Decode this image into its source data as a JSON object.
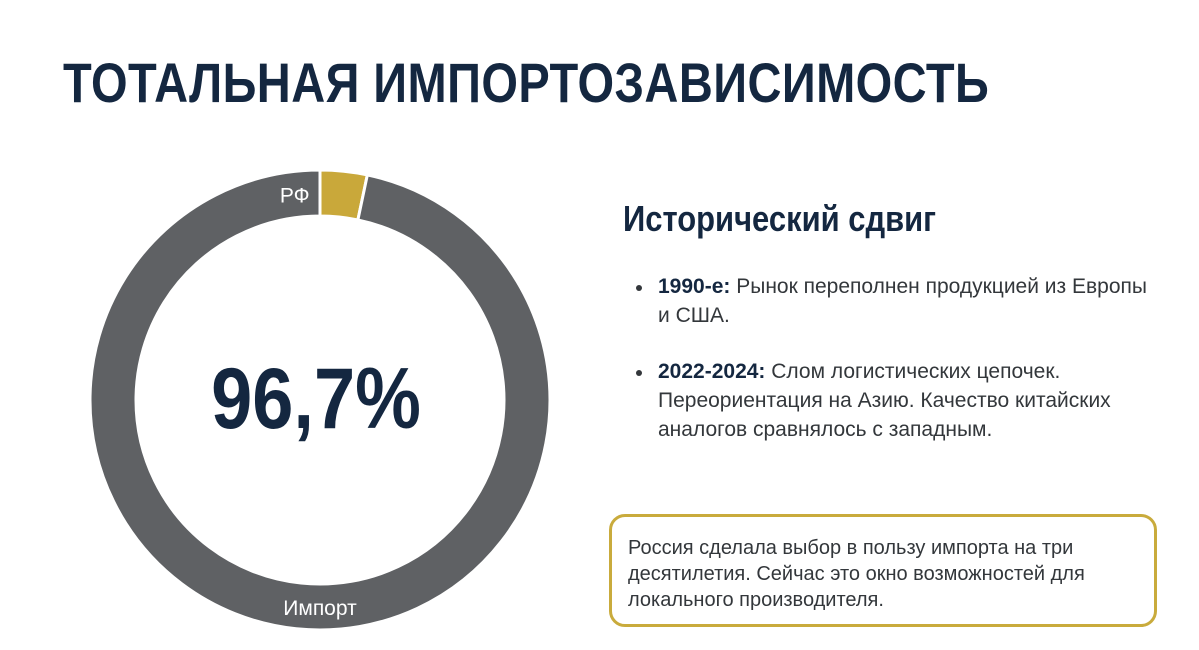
{
  "title": "ТОТАЛЬНАЯ ИМПОРТОЗАВИСИМОСТЬ",
  "colors": {
    "navy": "#142740",
    "import_gray": "#5f6164",
    "rf_gold": "#c9a83a",
    "callout_border": "#c9ab3c"
  },
  "chart_data": {
    "type": "pie",
    "variant": "donut",
    "center_label": "96,7%",
    "slices": [
      {
        "label": "РФ",
        "value": 3.3,
        "color": "#c9a83a"
      },
      {
        "label": "Импорт",
        "value": 96.7,
        "color": "#5f6164"
      }
    ]
  },
  "section": {
    "heading": "Исторический сдвиг",
    "bullets": [
      {
        "label": "1990-е:",
        "text": " Рынок переполнен продукцией из Европы и США."
      },
      {
        "label": "2022-2024:",
        "text": " Слом логистических цепочек. Переориентация на Азию. Качество китайских аналогов сравнялось с западным."
      }
    ]
  },
  "callout": {
    "text": "Россия сделала выбор в пользу импорта на три десятилетия. Сейчас это окно возможностей для локального производителя."
  }
}
